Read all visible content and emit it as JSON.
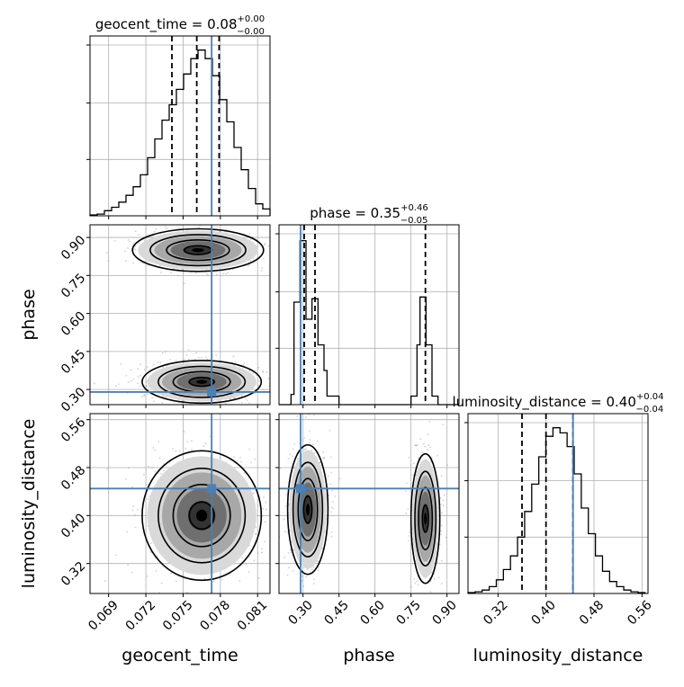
{
  "figure": {
    "type": "corner-plot",
    "accent_color": "#4c7fb4",
    "line_color": "#000000",
    "grid": true
  },
  "chart_data": [
    {
      "type": "histogram",
      "panel": "1d",
      "parameter": "geocent_time",
      "title": {
        "base": "geocent_time = 0.08",
        "plus": "+0.00",
        "minus": "−0.00"
      },
      "xlim": [
        0.0675,
        0.082
      ],
      "bin_edges": [
        0.0675,
        0.06808,
        0.06866,
        0.06924,
        0.06982,
        0.0704,
        0.07098,
        0.07156,
        0.07214,
        0.07272,
        0.0733,
        0.07388,
        0.07446,
        0.07504,
        0.07562,
        0.0762,
        0.07678,
        0.07736,
        0.07794,
        0.07852,
        0.0791,
        0.07968,
        0.08026,
        0.08084,
        0.08142,
        0.082
      ],
      "values": [
        0.005,
        0.01,
        0.03,
        0.05,
        0.08,
        0.12,
        0.17,
        0.24,
        0.34,
        0.45,
        0.56,
        0.65,
        0.74,
        0.83,
        0.92,
        0.97,
        0.92,
        0.82,
        0.68,
        0.55,
        0.4,
        0.27,
        0.16,
        0.07,
        0.04
      ],
      "quantiles": [
        0.0741,
        0.0761,
        0.0779
      ],
      "truth": 0.0773
    },
    {
      "type": "histogram",
      "panel": "1d",
      "parameter": "phase",
      "title": {
        "base": "phase = 0.35",
        "plus": "+0.46",
        "minus": "−0.05"
      },
      "xlim": [
        0.2,
        0.95
      ],
      "bin_edges": [
        0.2,
        0.25,
        0.2625,
        0.2875,
        0.3125,
        0.3375,
        0.3625,
        0.3875,
        0.4,
        0.45,
        0.5,
        0.55,
        0.6,
        0.65,
        0.7,
        0.75,
        0.775,
        0.7875,
        0.8125,
        0.8375,
        0.8625,
        0.95
      ],
      "values": [
        0.0,
        0.06,
        0.6,
        0.96,
        0.5,
        0.62,
        0.35,
        0.2,
        0.05,
        0.0,
        0.0,
        0.0,
        0.0,
        0.0,
        0.0,
        0.05,
        0.35,
        0.63,
        0.35,
        0.05,
        0.0
      ],
      "quantiles": [
        0.305,
        0.35,
        0.81
      ],
      "truth": 0.29
    },
    {
      "type": "histogram",
      "panel": "1d",
      "parameter": "luminosity_distance",
      "title": {
        "base": "luminosity_distance = 0.40",
        "plus": "+0.04",
        "minus": "−0.04"
      },
      "xlim": [
        0.27,
        0.57
      ],
      "bin_edges": [
        0.27,
        0.2818,
        0.2936,
        0.3054,
        0.3172,
        0.329,
        0.3408,
        0.3526,
        0.3644,
        0.3762,
        0.388,
        0.3998,
        0.4116,
        0.4234,
        0.4352,
        0.447,
        0.4588,
        0.4706,
        0.4824,
        0.4942,
        0.506,
        0.5178,
        0.5296,
        0.5414,
        0.5532,
        0.565
      ],
      "values": [
        0.005,
        0.01,
        0.02,
        0.04,
        0.08,
        0.14,
        0.22,
        0.33,
        0.48,
        0.64,
        0.8,
        0.92,
        0.97,
        0.94,
        0.86,
        0.7,
        0.5,
        0.35,
        0.22,
        0.13,
        0.07,
        0.04,
        0.02,
        0.01,
        0.005
      ],
      "quantiles": [
        0.36,
        0.4,
        0.445
      ],
      "truth": 0.445
    },
    {
      "type": "scatter",
      "panel": "2d",
      "x_parameter": "geocent_time",
      "y_parameter": "phase",
      "xlim": [
        0.0675,
        0.082
      ],
      "ylim": [
        0.24,
        0.95
      ],
      "clusters": [
        {
          "cx": 0.0762,
          "cy": 0.85,
          "sx": 0.0022,
          "sy": 0.035
        },
        {
          "cx": 0.0765,
          "cy": 0.33,
          "sx": 0.002,
          "sy": 0.035
        }
      ],
      "truth": [
        0.0773,
        0.29
      ]
    },
    {
      "type": "scatter",
      "panel": "2d",
      "x_parameter": "geocent_time",
      "y_parameter": "luminosity_distance",
      "xlim": [
        0.0675,
        0.082
      ],
      "ylim": [
        0.27,
        0.57
      ],
      "clusters": [
        {
          "cx": 0.0765,
          "cy": 0.4,
          "sx": 0.002,
          "sy": 0.045
        }
      ],
      "truth": [
        0.0773,
        0.445
      ]
    },
    {
      "type": "scatter",
      "panel": "2d",
      "x_parameter": "phase",
      "y_parameter": "luminosity_distance",
      "xlim": [
        0.2,
        0.95
      ],
      "ylim": [
        0.27,
        0.57
      ],
      "clusters": [
        {
          "cx": 0.32,
          "cy": 0.41,
          "sx": 0.035,
          "sy": 0.045
        },
        {
          "cx": 0.81,
          "cy": 0.395,
          "sx": 0.025,
          "sy": 0.045
        }
      ],
      "truth": [
        0.29,
        0.445
      ]
    }
  ],
  "axes": {
    "x_labels": [
      "geocent_time",
      "phase",
      "luminosity_distance"
    ],
    "y_labels": [
      "phase",
      "luminosity_distance"
    ],
    "x_ticks": {
      "geocent_time": [
        [
          "0.069",
          0.069
        ],
        [
          "0.072",
          0.072
        ],
        [
          "0.075",
          0.075
        ],
        [
          "0.078",
          0.078
        ],
        [
          "0.081",
          0.081
        ]
      ],
      "phase": [
        [
          "0.30",
          0.3
        ],
        [
          "0.45",
          0.45
        ],
        [
          "0.60",
          0.6
        ],
        [
          "0.75",
          0.75
        ],
        [
          "0.90",
          0.9
        ]
      ],
      "luminosity_distance": [
        [
          "0.32",
          0.32
        ],
        [
          "0.40",
          0.4
        ],
        [
          "0.48",
          0.48
        ],
        [
          "0.56",
          0.56
        ]
      ]
    },
    "y_ticks": {
      "phase": [
        [
          "0.30",
          0.3
        ],
        [
          "0.45",
          0.45
        ],
        [
          "0.60",
          0.6
        ],
        [
          "0.75",
          0.75
        ],
        [
          "0.90",
          0.9
        ]
      ],
      "luminosity_distance": [
        [
          "0.32",
          0.32
        ],
        [
          "0.40",
          0.4
        ],
        [
          "0.48",
          0.48
        ],
        [
          "0.56",
          0.56
        ]
      ]
    }
  }
}
